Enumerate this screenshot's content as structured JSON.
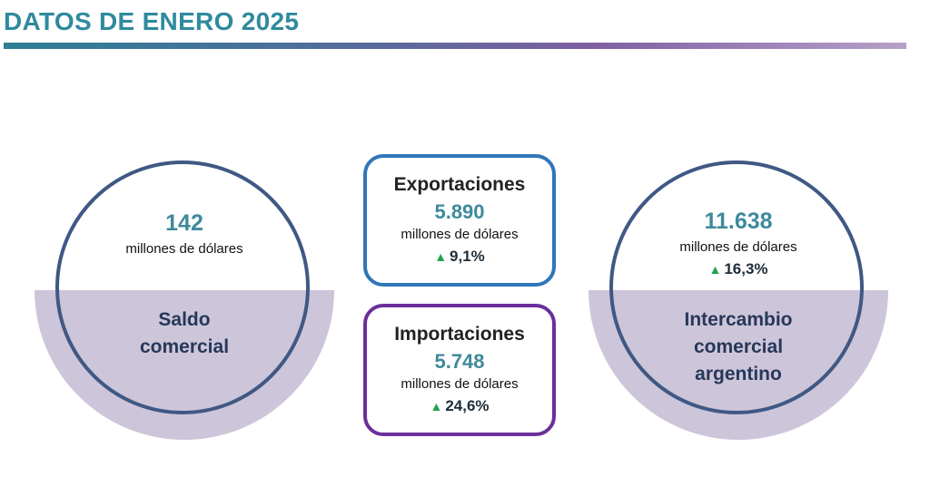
{
  "header": {
    "title": "DATOS DE ENERO 2025"
  },
  "saldo": {
    "value": "142",
    "unit": "millones de dólares",
    "label_line1": "Saldo",
    "label_line2": "comercial"
  },
  "exportaciones": {
    "title": "Exportaciones",
    "value": "5.890",
    "unit": "millones de dólares",
    "delta": "9,1%"
  },
  "importaciones": {
    "title": "Importaciones",
    "value": "5.748",
    "unit": "millones de dólares",
    "delta": "24,6%"
  },
  "intercambio": {
    "value": "11.638",
    "unit": "millones de dólares",
    "delta": "16,3%",
    "label_line1": "Intercambio",
    "label_line2": "comercial",
    "label_line3": "argentino"
  },
  "colors": {
    "accent_teal": "#3e8a9b",
    "ring": "#3f5884",
    "half_fill": "#cdc5d9",
    "export_border": "#2f76b8",
    "import_border": "#6b2f9b",
    "up_arrow": "#1fa34a"
  },
  "icons": {
    "delta_up": "up-triangle-icon"
  }
}
